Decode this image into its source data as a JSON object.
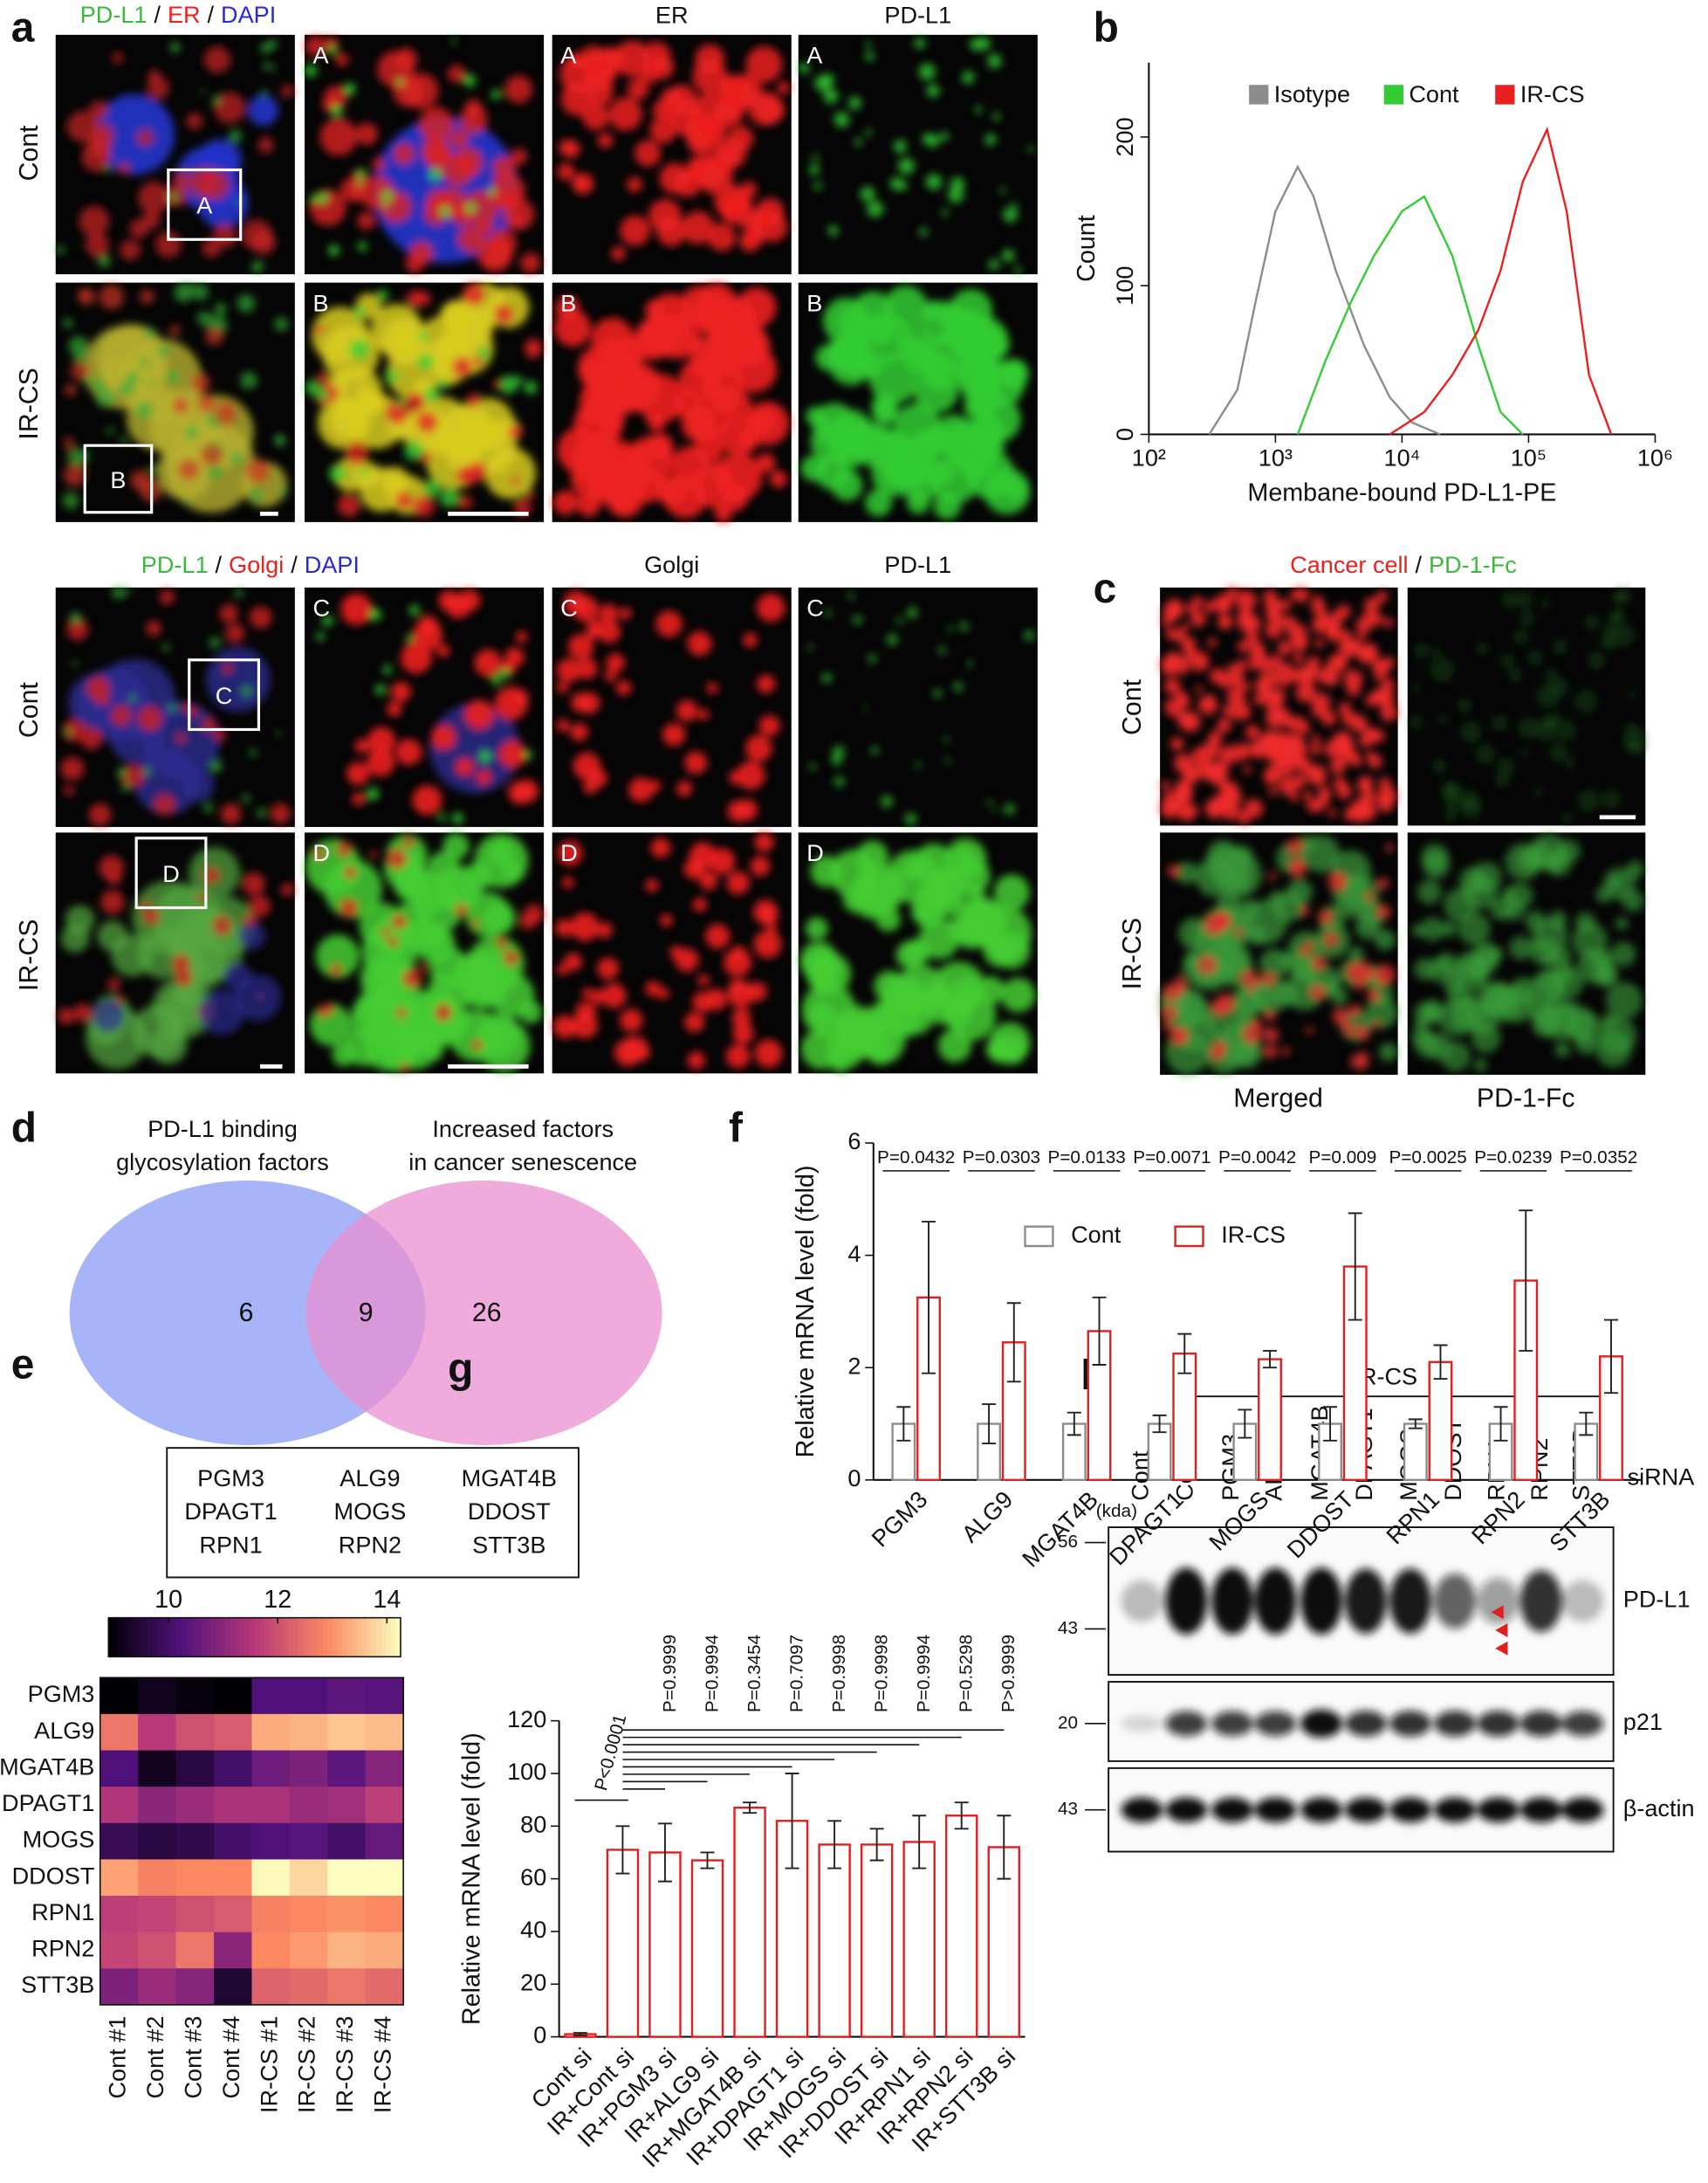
{
  "panel_a": {
    "letter": "a",
    "top_header": [
      {
        "text": "PD-L1",
        "color": "#3cb93c"
      },
      {
        "text": "/",
        "color": "#111111"
      },
      {
        "text": "ER",
        "color": "#e8221e"
      },
      {
        "text": "/",
        "color": "#111111"
      },
      {
        "text": "DAPI",
        "color": "#2a2ad0"
      }
    ],
    "top_columns": [
      {
        "text": "ER",
        "color": "#e8221e"
      },
      {
        "text": "PD-L1",
        "color": "#3cb93c"
      }
    ],
    "bottom_header": [
      {
        "text": "PD-L1",
        "color": "#3cb93c"
      },
      {
        "text": "/",
        "color": "#111111"
      },
      {
        "text": "Golgi",
        "color": "#e8221e"
      },
      {
        "text": "/",
        "color": "#111111"
      },
      {
        "text": "DAPI",
        "color": "#2a2ad0"
      }
    ],
    "bottom_columns": [
      {
        "text": "Golgi",
        "color": "#e8221e"
      },
      {
        "text": "PD-L1",
        "color": "#3cb93c"
      }
    ],
    "rows": [
      "Cont",
      "IR-CS",
      "Cont",
      "IR-CS"
    ],
    "insets": [
      "A",
      "B",
      "C",
      "D"
    ]
  },
  "panel_c": {
    "letter": "c",
    "header": [
      {
        "text": "Cancer cell",
        "color": "#e8221e"
      },
      {
        "text": "/",
        "color": "#111111"
      },
      {
        "text": "PD-1-Fc",
        "color": "#3cb93c"
      }
    ],
    "rows": [
      "Cont",
      "IR-CS"
    ],
    "columns": [
      {
        "text": "Merged",
        "color": "#111111"
      },
      {
        "text": "PD-1-Fc",
        "color": "#3cb93c"
      }
    ]
  },
  "panel_d": {
    "letter": "d",
    "left_title": [
      "PD-L1 binding",
      "glycosylation factors"
    ],
    "right_title": [
      "Increased factors",
      "in cancer senescence"
    ],
    "counts": [
      6,
      9,
      26
    ],
    "genes": [
      [
        "PGM3",
        "ALG9",
        "MGAT4B"
      ],
      [
        "DPAGT1",
        "MOGS",
        "DDOST"
      ],
      [
        "RPN1",
        "RPN2",
        "STT3B"
      ]
    ]
  },
  "panel_h": {
    "letter": "h",
    "group": "IR-CS",
    "lanes": [
      "Cont",
      "Cont",
      "PGM3",
      "ALG9",
      "MGAT4B",
      "DPAGT1",
      "MOGS",
      "DDOST",
      "RPN1",
      "RPN2",
      "STT3B"
    ],
    "lane_colors": [
      "#111111",
      "#111111",
      "#111111",
      "#111111",
      "#111111",
      "#111111",
      "#111111",
      "#e02020",
      "#e02020",
      "#e02020",
      "#e02020"
    ],
    "reagent": "siRNA",
    "unit": "(kda)",
    "markers": [
      56,
      43,
      20,
      43
    ],
    "proteins": [
      "PD-L1",
      "p21",
      "β-actin"
    ]
  },
  "chart_data": [
    {
      "letter": "b",
      "type": "line",
      "xscale": "log",
      "xlabel": "Membane-bound PD-L1-PE",
      "ylabel": "Count",
      "xlim": [
        100,
        1000000
      ],
      "xticks": [
        {
          "value": 100,
          "label": "10²"
        },
        {
          "value": 1000,
          "label": "10³"
        },
        {
          "value": 10000,
          "label": "10⁴"
        },
        {
          "value": 100000,
          "label": "10⁵"
        },
        {
          "value": 1000000,
          "label": "10⁶"
        }
      ],
      "ylim": [
        0,
        250
      ],
      "yticks": [
        0,
        100,
        200
      ],
      "legend": "top",
      "series": [
        {
          "name": "Isotype",
          "color": "#8c8c8c",
          "x": [
            300,
            500,
            700,
            1000,
            1500,
            2000,
            3000,
            5000,
            8000,
            12000,
            20000
          ],
          "values": [
            0,
            30,
            90,
            150,
            180,
            160,
            110,
            60,
            25,
            8,
            0
          ]
        },
        {
          "name": "Cont",
          "color": "#33cc33",
          "x": [
            1500,
            2500,
            4000,
            6000,
            10000,
            15000,
            25000,
            40000,
            60000,
            90000
          ],
          "values": [
            0,
            50,
            90,
            120,
            150,
            160,
            120,
            60,
            15,
            0
          ]
        },
        {
          "name": "IR-CS",
          "color": "#e82020",
          "x": [
            8000,
            15000,
            25000,
            40000,
            60000,
            90000,
            140000,
            200000,
            300000,
            450000
          ],
          "values": [
            0,
            15,
            40,
            70,
            110,
            170,
            205,
            150,
            40,
            0
          ]
        }
      ]
    },
    {
      "letter": "e",
      "type": "heatmap",
      "colormap": "magma",
      "rows": [
        "PGM3",
        "ALG9",
        "MGAT4B",
        "DPAGT1",
        "MOGS",
        "DDOST",
        "RPN1",
        "RPN2",
        "STT3B"
      ],
      "columns": [
        "Cont #1",
        "Cont #2",
        "Cont #3",
        "Cont #4",
        "IR-CS #1",
        "IR-CS #2",
        "IR-CS #3",
        "IR-CS #4"
      ],
      "values": [
        [
          8.6,
          9.2,
          9.0,
          8.5,
          10.2,
          10.2,
          10.4,
          10.3
        ],
        [
          12.6,
          11.6,
          12.0,
          12.2,
          13.3,
          13.4,
          13.6,
          13.5
        ],
        [
          10.2,
          9.2,
          9.6,
          10.0,
          10.6,
          10.8,
          10.4,
          10.9
        ],
        [
          11.5,
          11.0,
          11.2,
          11.4,
          11.4,
          11.2,
          11.3,
          11.7
        ],
        [
          9.8,
          9.6,
          9.7,
          10.0,
          10.2,
          10.3,
          10.0,
          10.5
        ],
        [
          13.2,
          12.8,
          12.9,
          12.9,
          14.2,
          13.8,
          14.4,
          14.3
        ],
        [
          11.7,
          11.8,
          12.0,
          12.2,
          12.8,
          12.9,
          13.0,
          12.9
        ],
        [
          11.8,
          12.0,
          12.6,
          11.0,
          12.9,
          13.1,
          13.4,
          13.3
        ],
        [
          10.8,
          11.2,
          10.9,
          9.4,
          12.3,
          12.4,
          12.6,
          12.4
        ]
      ],
      "clim": [
        8.9,
        14.25
      ],
      "cticks": [
        10,
        12,
        14
      ]
    },
    {
      "letter": "f",
      "type": "bar",
      "ylabel": "Relative mRNA level (fold)",
      "categories": [
        "PGM3",
        "ALG9",
        "MGAT4B",
        "DPAGT1",
        "MOGS",
        "DDOST",
        "RPN1",
        "RPN2",
        "STT3B"
      ],
      "ylim": [
        0,
        6
      ],
      "yticks": [
        0,
        2,
        4,
        6
      ],
      "legend": "top",
      "series": [
        {
          "name": "Cont",
          "color": "#8c8c8c",
          "values": [
            1,
            1,
            1,
            1,
            1,
            1,
            1,
            1,
            1
          ],
          "errors": [
            0.3,
            0.35,
            0.2,
            0.15,
            0.25,
            0.3,
            0.08,
            0.3,
            0.2
          ]
        },
        {
          "name": "IR-CS",
          "color": "#e02020",
          "values": [
            3.25,
            2.45,
            2.65,
            2.25,
            2.15,
            3.8,
            2.1,
            3.55,
            2.2
          ],
          "errors": [
            1.35,
            0.7,
            0.6,
            0.35,
            0.15,
            0.95,
            0.3,
            1.25,
            0.65
          ]
        }
      ],
      "annotations": [
        "P=0.0432",
        "P=0.0303",
        "P=0.0133",
        "P=0.0071",
        "P=0.0042",
        "P=0.009",
        "P=0.0025",
        "P=0.0239",
        "P=0.0352"
      ]
    },
    {
      "letter": "g",
      "type": "bar",
      "ylabel": "Relative mRNA level (fold)",
      "categories": [
        "Cont si",
        "IR+Cont si",
        "IR+PGM3 si",
        "IR+ALG9 si",
        "IR+MGAT4B si",
        "IR+DPAGT1 si",
        "IR+MOGS si",
        "IR+DDOST si",
        "IR+RPN1 si",
        "IR+RPN2 si",
        "IR+STT3B si"
      ],
      "values": [
        1,
        71,
        70,
        67,
        87,
        82,
        73,
        73,
        74,
        84,
        72
      ],
      "errors": [
        0.5,
        9,
        11,
        3,
        2,
        18,
        9,
        6,
        10,
        5,
        12
      ],
      "color": "#e02020",
      "ylim": [
        0,
        120
      ],
      "yticks": [
        0,
        20,
        40,
        60,
        80,
        100,
        120
      ],
      "annotations": [
        "P<0.0001",
        "P=0.9999",
        "P=0.9994",
        "P=0.3454",
        "P=0.7097",
        "P=0.9998",
        "P=0.9998",
        "P=0.9994",
        "P=0.5298",
        "P>0.9999"
      ]
    }
  ]
}
